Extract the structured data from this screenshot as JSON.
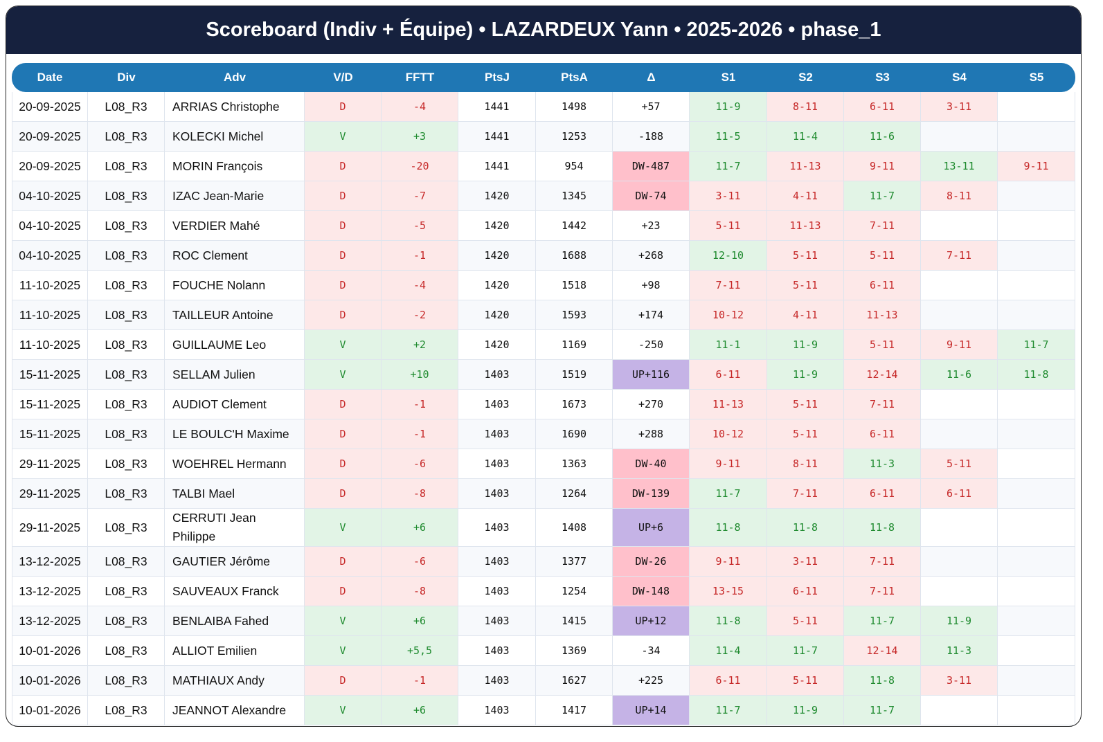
{
  "title": "Scoreboard (Indiv + Équipe) • LAZARDEUX Yann • 2025-2026 • phase_1",
  "columns": [
    "Date",
    "Div",
    "Adv",
    "V/D",
    "FFTT",
    "PtsJ",
    "PtsA",
    "Δ",
    "S1",
    "S2",
    "S3",
    "S4",
    "S5"
  ],
  "colors": {
    "header_bg": "#16213e",
    "table_header": "#1f77b4",
    "win_bg": "#e2f4e6",
    "win_fg": "#1e8a2e",
    "loss_bg": "#fde8e8",
    "loss_fg": "#c62828",
    "dw_bg": "#ffc0cb",
    "up_bg": "#c5b3e6"
  },
  "rows": [
    {
      "date": "20-09-2025",
      "div": "L08_R3",
      "adv": "ARRIAS Christophe",
      "vd": "D",
      "fftt": "-4",
      "ptsj": "1441",
      "ptsa": "1498",
      "delta": "+57",
      "sets": [
        "11-9",
        "8-11",
        "6-11",
        "3-11",
        ""
      ]
    },
    {
      "date": "20-09-2025",
      "div": "L08_R3",
      "adv": "KOLECKI Michel",
      "vd": "V",
      "fftt": "+3",
      "ptsj": "1441",
      "ptsa": "1253",
      "delta": "-188",
      "sets": [
        "11-5",
        "11-4",
        "11-6",
        "",
        ""
      ]
    },
    {
      "date": "20-09-2025",
      "div": "L08_R3",
      "adv": "MORIN François",
      "vd": "D",
      "fftt": "-20",
      "ptsj": "1441",
      "ptsa": "954",
      "delta": "DW-487",
      "sets": [
        "11-7",
        "11-13",
        "9-11",
        "13-11",
        "9-11"
      ]
    },
    {
      "date": "04-10-2025",
      "div": "L08_R3",
      "adv": "IZAC Jean-Marie",
      "vd": "D",
      "fftt": "-7",
      "ptsj": "1420",
      "ptsa": "1345",
      "delta": "DW-74",
      "sets": [
        "3-11",
        "4-11",
        "11-7",
        "8-11",
        ""
      ]
    },
    {
      "date": "04-10-2025",
      "div": "L08_R3",
      "adv": "VERDIER Mahé",
      "vd": "D",
      "fftt": "-5",
      "ptsj": "1420",
      "ptsa": "1442",
      "delta": "+23",
      "sets": [
        "5-11",
        "11-13",
        "7-11",
        "",
        ""
      ]
    },
    {
      "date": "04-10-2025",
      "div": "L08_R3",
      "adv": "ROC Clement",
      "vd": "D",
      "fftt": "-1",
      "ptsj": "1420",
      "ptsa": "1688",
      "delta": "+268",
      "sets": [
        "12-10",
        "5-11",
        "5-11",
        "7-11",
        ""
      ]
    },
    {
      "date": "11-10-2025",
      "div": "L08_R3",
      "adv": "FOUCHE Nolann",
      "vd": "D",
      "fftt": "-4",
      "ptsj": "1420",
      "ptsa": "1518",
      "delta": "+98",
      "sets": [
        "7-11",
        "5-11",
        "6-11",
        "",
        ""
      ]
    },
    {
      "date": "11-10-2025",
      "div": "L08_R3",
      "adv": "TAILLEUR Antoine",
      "vd": "D",
      "fftt": "-2",
      "ptsj": "1420",
      "ptsa": "1593",
      "delta": "+174",
      "sets": [
        "10-12",
        "4-11",
        "11-13",
        "",
        ""
      ]
    },
    {
      "date": "11-10-2025",
      "div": "L08_R3",
      "adv": "GUILLAUME Leo",
      "vd": "V",
      "fftt": "+2",
      "ptsj": "1420",
      "ptsa": "1169",
      "delta": "-250",
      "sets": [
        "11-1",
        "11-9",
        "5-11",
        "9-11",
        "11-7"
      ]
    },
    {
      "date": "15-11-2025",
      "div": "L08_R3",
      "adv": "SELLAM Julien",
      "vd": "V",
      "fftt": "+10",
      "ptsj": "1403",
      "ptsa": "1519",
      "delta": "UP+116",
      "sets": [
        "6-11",
        "11-9",
        "12-14",
        "11-6",
        "11-8"
      ]
    },
    {
      "date": "15-11-2025",
      "div": "L08_R3",
      "adv": "AUDIOT Clement",
      "vd": "D",
      "fftt": "-1",
      "ptsj": "1403",
      "ptsa": "1673",
      "delta": "+270",
      "sets": [
        "11-13",
        "5-11",
        "7-11",
        "",
        ""
      ]
    },
    {
      "date": "15-11-2025",
      "div": "L08_R3",
      "adv": "LE BOULC'H Maxime",
      "vd": "D",
      "fftt": "-1",
      "ptsj": "1403",
      "ptsa": "1690",
      "delta": "+288",
      "sets": [
        "10-12",
        "5-11",
        "6-11",
        "",
        ""
      ]
    },
    {
      "date": "29-11-2025",
      "div": "L08_R3",
      "adv": "WOEHREL Hermann",
      "vd": "D",
      "fftt": "-6",
      "ptsj": "1403",
      "ptsa": "1363",
      "delta": "DW-40",
      "sets": [
        "9-11",
        "8-11",
        "11-3",
        "5-11",
        ""
      ]
    },
    {
      "date": "29-11-2025",
      "div": "L08_R3",
      "adv": "TALBI Mael",
      "vd": "D",
      "fftt": "-8",
      "ptsj": "1403",
      "ptsa": "1264",
      "delta": "DW-139",
      "sets": [
        "11-7",
        "7-11",
        "6-11",
        "6-11",
        ""
      ]
    },
    {
      "date": "29-11-2025",
      "div": "L08_R3",
      "adv": "CERRUTI Jean Philippe",
      "vd": "V",
      "fftt": "+6",
      "ptsj": "1403",
      "ptsa": "1408",
      "delta": "UP+6",
      "sets": [
        "11-8",
        "11-8",
        "11-8",
        "",
        ""
      ]
    },
    {
      "date": "13-12-2025",
      "div": "L08_R3",
      "adv": "GAUTIER Jérôme",
      "vd": "D",
      "fftt": "-6",
      "ptsj": "1403",
      "ptsa": "1377",
      "delta": "DW-26",
      "sets": [
        "9-11",
        "3-11",
        "7-11",
        "",
        ""
      ]
    },
    {
      "date": "13-12-2025",
      "div": "L08_R3",
      "adv": "SAUVEAUX Franck",
      "vd": "D",
      "fftt": "-8",
      "ptsj": "1403",
      "ptsa": "1254",
      "delta": "DW-148",
      "sets": [
        "13-15",
        "6-11",
        "7-11",
        "",
        ""
      ]
    },
    {
      "date": "13-12-2025",
      "div": "L08_R3",
      "adv": "BENLAIBA Fahed",
      "vd": "V",
      "fftt": "+6",
      "ptsj": "1403",
      "ptsa": "1415",
      "delta": "UP+12",
      "sets": [
        "11-8",
        "5-11",
        "11-7",
        "11-9",
        ""
      ]
    },
    {
      "date": "10-01-2026",
      "div": "L08_R3",
      "adv": "ALLIOT Emilien",
      "vd": "V",
      "fftt": "+5,5",
      "ptsj": "1403",
      "ptsa": "1369",
      "delta": "-34",
      "sets": [
        "11-4",
        "11-7",
        "12-14",
        "11-3",
        ""
      ]
    },
    {
      "date": "10-01-2026",
      "div": "L08_R3",
      "adv": "MATHIAUX Andy",
      "vd": "D",
      "fftt": "-1",
      "ptsj": "1403",
      "ptsa": "1627",
      "delta": "+225",
      "sets": [
        "6-11",
        "5-11",
        "11-8",
        "3-11",
        ""
      ]
    },
    {
      "date": "10-01-2026",
      "div": "L08_R3",
      "adv": "JEANNOT Alexandre",
      "vd": "V",
      "fftt": "+6",
      "ptsj": "1403",
      "ptsa": "1417",
      "delta": "UP+14",
      "sets": [
        "11-7",
        "11-9",
        "11-7",
        "",
        ""
      ]
    }
  ]
}
